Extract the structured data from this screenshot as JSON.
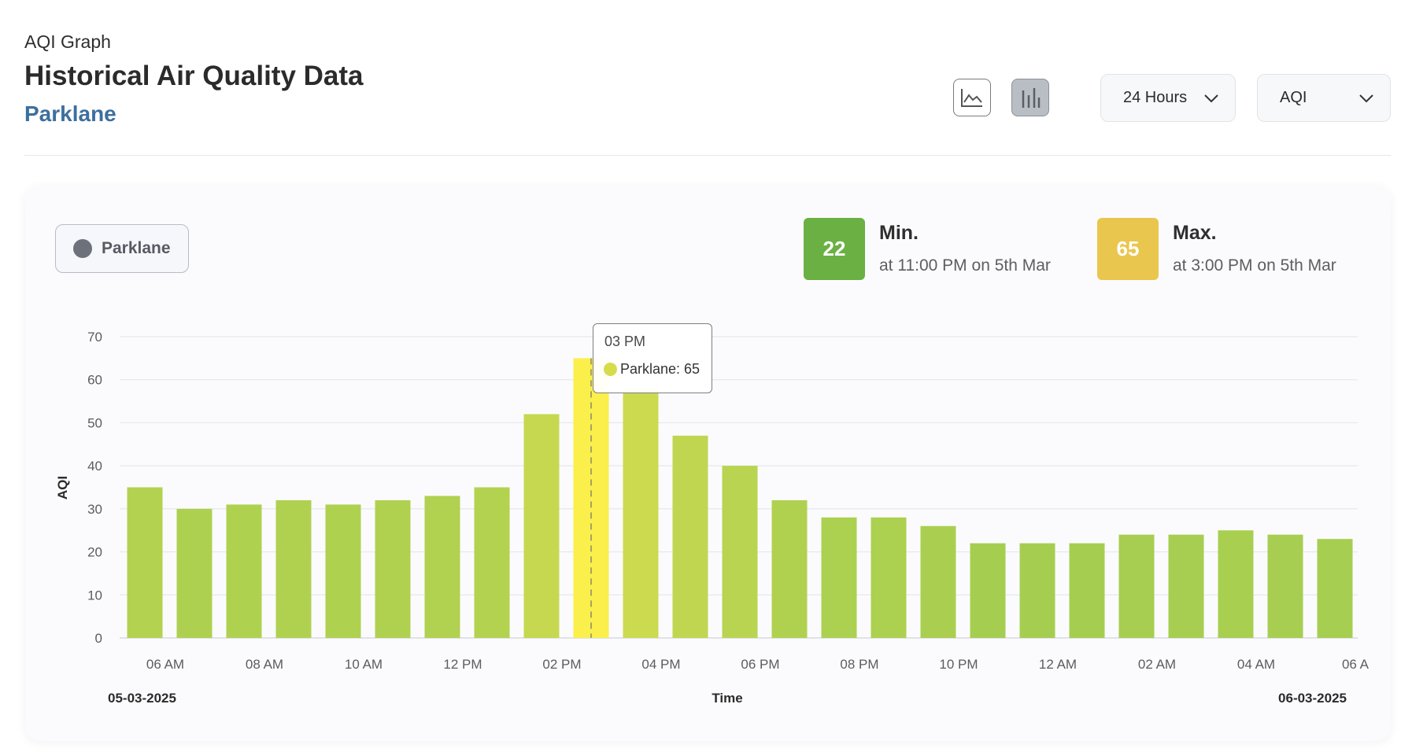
{
  "header": {
    "eyebrow": "AQI Graph",
    "title": "Historical Air Quality Data",
    "location": "Parklane"
  },
  "toolbar": {
    "line_chart_icon": "line-chart-icon",
    "bar_chart_icon": "bar-chart-icon",
    "active_view": "bar",
    "range_select": "24 Hours",
    "metric_select": "AQI"
  },
  "legend": {
    "label": "Parklane",
    "dot_color": "#6c717a"
  },
  "stats": {
    "min": {
      "value": "22",
      "label": "Min.",
      "detail": "at 11:00 PM on 5th Mar",
      "color": "#6bb043"
    },
    "max": {
      "value": "65",
      "label": "Max.",
      "detail": "at 3:00 PM on 5th Mar",
      "color": "#e9c64e"
    }
  },
  "tooltip": {
    "title": "03 PM",
    "text": "Parklane: 65"
  },
  "chart_data": {
    "type": "bar",
    "ylabel": "AQI",
    "xlabel": "Time",
    "ylim": [
      0,
      70
    ],
    "yticks": [
      0,
      10,
      20,
      30,
      40,
      50,
      60,
      70
    ],
    "grid": true,
    "xtick_labels": [
      "06 AM",
      "08 AM",
      "10 AM",
      "12 PM",
      "02 PM",
      "04 PM",
      "06 PM",
      "08 PM",
      "10 PM",
      "12 AM",
      "02 AM",
      "04 AM",
      "06 A"
    ],
    "date_start": "05-03-2025",
    "date_end": "06-03-2025",
    "series": [
      {
        "name": "Parklane",
        "values": [
          35,
          30,
          31,
          32,
          31,
          32,
          33,
          35,
          52,
          65,
          58,
          47,
          40,
          32,
          28,
          28,
          26,
          22,
          22,
          22,
          24,
          24,
          25,
          24,
          23
        ]
      }
    ],
    "highlight_index": 9
  }
}
